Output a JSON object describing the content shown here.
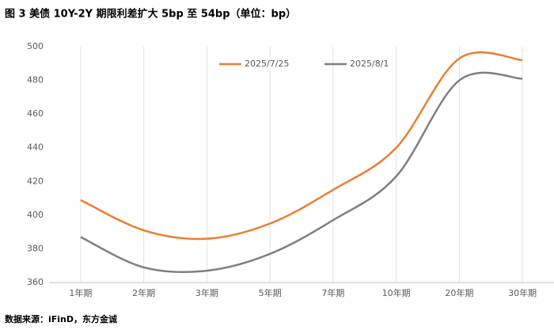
{
  "chart_data": {
    "type": "line",
    "title": "图 3  美债 10Y-2Y 期限利差扩大 5bp 至 54bp（单位：bp）",
    "source": "数据来源：iFinD，东方金诚",
    "categories": [
      "1年期",
      "2年期",
      "3年期",
      "5年期",
      "7年期",
      "10年期",
      "20年期",
      "30年期"
    ],
    "series": [
      {
        "name": "2025/7/25",
        "color": "#ed7d31",
        "values": [
          409,
          391,
          386,
          395,
          415,
          440,
          493,
          492
        ]
      },
      {
        "name": "2025/8/1",
        "color": "#7f7f7f",
        "values": [
          387,
          369,
          367,
          377,
          397,
          423,
          480,
          481
        ]
      }
    ],
    "ylim": [
      360,
      500
    ],
    "yticks": [
      360,
      380,
      400,
      420,
      440,
      460,
      480,
      500
    ],
    "grid": "x",
    "smooth": true,
    "legend": "top"
  }
}
